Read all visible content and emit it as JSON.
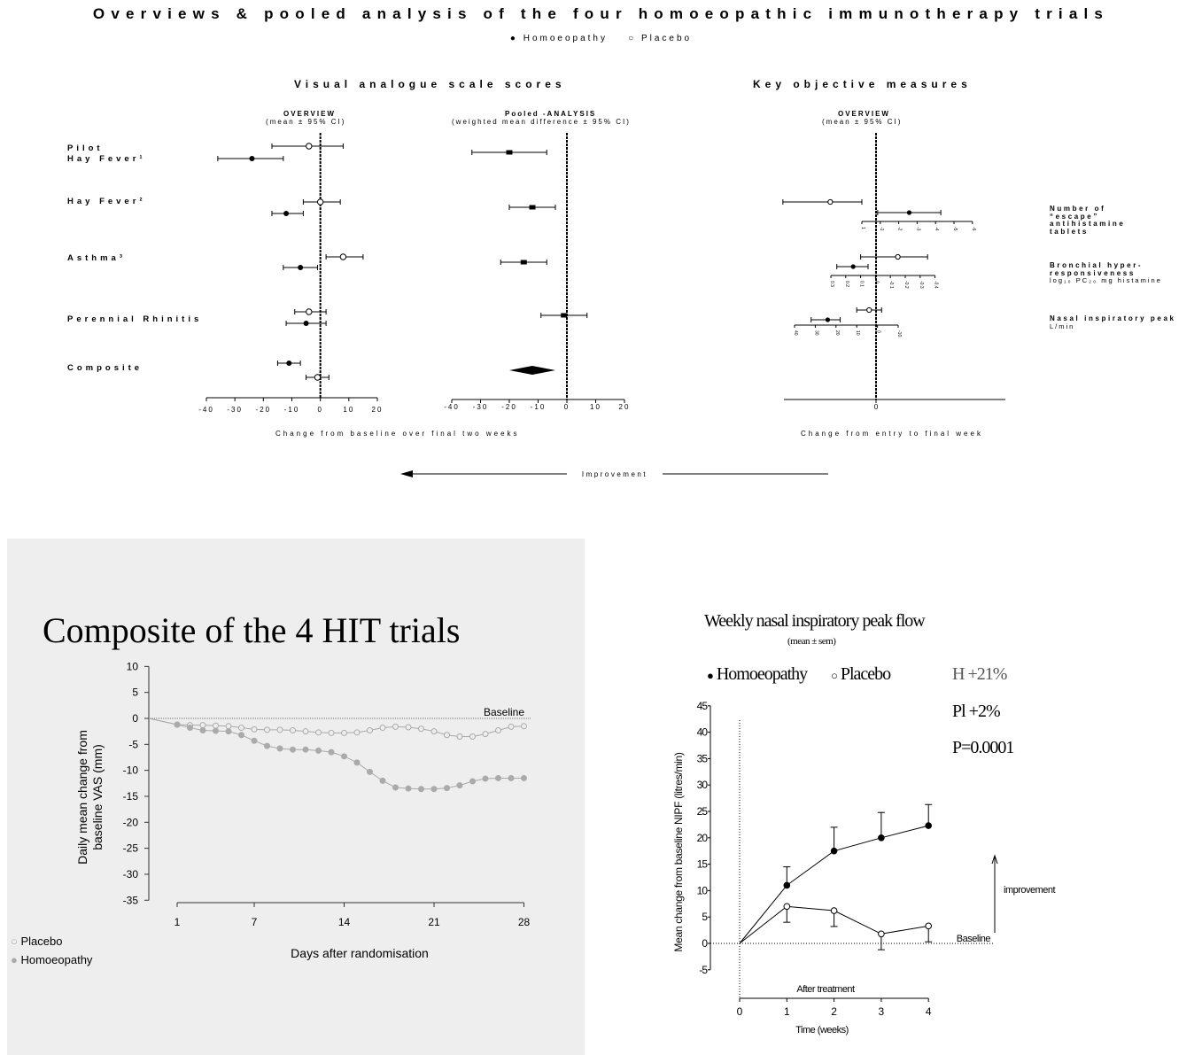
{
  "title": "Overviews & pooled analysis of the four homoeopathic immunotherapy trials",
  "legend": {
    "homoeopathy": "Homoeopathy",
    "placebo": "Placebo"
  },
  "sections": {
    "vas": "Visual analogue scale scores",
    "objective": "Key objective measures"
  },
  "panels": {
    "overview_title": "OVERVIEW",
    "overview_sub": "(mean ± 95% CI)",
    "pooled_title": "Pooled -ANALYSIS",
    "pooled_sub": "(weighted mean difference ± 95% CI)",
    "obj_overview_title": "OVERVIEW",
    "obj_overview_sub": "(mean ± 95% CI)"
  },
  "trials": {
    "pilot_1": "Pilot",
    "pilot_2": "Hay Fever¹",
    "hayfever": "Hay Fever²",
    "asthma": "Asthma³",
    "perennial": "Perennial Rhinitis",
    "composite": "Composite"
  },
  "objective_labels": {
    "escape_1": "Number of",
    "escape_2": "“escape”",
    "escape_3": "antihistamine",
    "escape_4": "tablets",
    "bronch_1": "Bronchial hyper-",
    "bronch_2": "responsiveness",
    "bronch_3": "log₁₀ PC₂₀ mg histamine",
    "nasal_1": "Nasal inspiratory peak",
    "nasal_2": "L/min"
  },
  "axis_labels": {
    "vas_x": "Change from baseline over final two weeks",
    "obj_x": "Change from entry to final week",
    "improvement": "Improvement"
  },
  "chart_data": [
    {
      "type": "scatter",
      "name": "VAS overview",
      "xlim": [
        -40,
        20
      ],
      "ticks": [
        -40,
        -30,
        -20,
        -10,
        0,
        10,
        20
      ],
      "rows": [
        {
          "trial": "Pilot Hay Fever1",
          "homoeopathy": {
            "mean": -24,
            "lo": -36,
            "hi": -13
          },
          "placebo": {
            "mean": -4,
            "lo": -17,
            "hi": 8
          }
        },
        {
          "trial": "Hay Fever2",
          "homoeopathy": {
            "mean": -12,
            "lo": -17,
            "hi": -6
          },
          "placebo": {
            "mean": 0,
            "lo": -6,
            "hi": 7
          }
        },
        {
          "trial": "Asthma3",
          "homoeopathy": {
            "mean": -7,
            "lo": -13,
            "hi": -1
          },
          "placebo": {
            "mean": 8,
            "lo": 2,
            "hi": 15
          }
        },
        {
          "trial": "Perennial Rhinitis",
          "homoeopathy": {
            "mean": -5,
            "lo": -12,
            "hi": 2
          },
          "placebo": {
            "mean": -4,
            "lo": -9,
            "hi": 2
          }
        },
        {
          "trial": "Composite",
          "homoeopathy": {
            "mean": -11,
            "lo": -15,
            "hi": -7
          },
          "placebo": {
            "mean": -1,
            "lo": -5,
            "hi": 3
          }
        }
      ]
    },
    {
      "type": "scatter",
      "name": "VAS pooled analysis",
      "xlim": [
        -40,
        20
      ],
      "ticks": [
        -40,
        -30,
        -20,
        -10,
        0,
        10,
        20
      ],
      "rows": [
        {
          "trial": "Pilot Hay Fever1",
          "wmd": -20,
          "lo": -33,
          "hi": -7
        },
        {
          "trial": "Hay Fever2",
          "wmd": -12,
          "lo": -20,
          "hi": -4
        },
        {
          "trial": "Asthma3",
          "wmd": -15,
          "lo": -23,
          "hi": -7
        },
        {
          "trial": "Perennial Rhinitis",
          "wmd": -1,
          "lo": -9,
          "hi": 7
        },
        {
          "trial": "Composite",
          "wmd": -12,
          "lo": -20,
          "hi": -4,
          "diamond": true
        }
      ]
    },
    {
      "type": "scatter",
      "name": "Objective measures overview",
      "baseline_tick": "0",
      "measures": [
        {
          "measure": "escape antihistamine tablets",
          "ticks": [
            "1",
            "-1",
            "-2",
            "-3",
            "-4",
            "-5",
            "-6"
          ],
          "homoeopathy": {
            "mean": -2,
            "lo": -4,
            "hi": 0
          },
          "placebo": {
            "mean": 3,
            "lo": 1,
            "hi": 6
          }
        },
        {
          "measure": "bronchial hyperresponsiveness",
          "ticks": [
            "0.3",
            "0.2",
            "0.1",
            "0",
            "-0.1",
            "-0.2",
            "-0.3",
            "-0.4"
          ],
          "homoeopathy": {
            "mean": 0.15,
            "lo": 0.05,
            "hi": 0.26
          },
          "placebo": {
            "mean": -0.15,
            "lo": -0.35,
            "hi": 0.1
          }
        },
        {
          "measure": "nasal inspiratory peak flow",
          "ticks": [
            "40",
            "30",
            "20",
            "10",
            "0",
            "-10"
          ],
          "homoeopathy": {
            "mean": 24,
            "lo": 18,
            "hi": 32
          },
          "placebo": {
            "mean": 4,
            "lo": -2,
            "hi": 10
          }
        }
      ]
    },
    {
      "type": "line",
      "title": "Composite of the 4 HIT trials",
      "xlabel": "Days after randomisation",
      "ylabel": "Daily mean change from baseline VAS (mm)",
      "ylim": [
        -35,
        10
      ],
      "yticks": [
        10,
        5,
        0,
        -5,
        -10,
        -15,
        -20,
        -25,
        -30,
        -35
      ],
      "xticks": [
        1,
        7,
        14,
        21,
        28
      ],
      "baseline_label": "Baseline",
      "x": [
        1,
        2,
        3,
        4,
        5,
        6,
        7,
        8,
        9,
        10,
        11,
        12,
        13,
        14,
        15,
        16,
        17,
        18,
        19,
        20,
        21,
        22,
        23,
        24,
        25,
        26,
        27,
        28
      ],
      "series": [
        {
          "name": "Placebo",
          "values": [
            -1.2,
            -1.3,
            -1.3,
            -1.4,
            -1.5,
            -1.8,
            -2.1,
            -2.2,
            -2.2,
            -2.3,
            -2.5,
            -2.7,
            -2.8,
            -2.8,
            -2.7,
            -2.3,
            -1.8,
            -1.6,
            -1.7,
            -2.0,
            -2.5,
            -3.2,
            -3.5,
            -3.5,
            -3.0,
            -2.3,
            -1.6,
            -1.5
          ]
        },
        {
          "name": "Homoeopathy",
          "values": [
            -1.2,
            -1.8,
            -2.3,
            -2.4,
            -2.5,
            -3.2,
            -4.3,
            -5.3,
            -5.8,
            -6.0,
            -6.0,
            -6.2,
            -6.5,
            -7.3,
            -8.5,
            -10.3,
            -12.0,
            -13.3,
            -13.5,
            -13.6,
            -13.6,
            -13.4,
            -12.9,
            -12.1,
            -11.6,
            -11.5,
            -11.5,
            -11.5
          ]
        }
      ]
    },
    {
      "type": "line",
      "title": "Weekly nasal inspiratory peak flow",
      "subtitle": "(mean ± sem)",
      "xlabel": "Time (weeks)",
      "ylabel": "Mean change from baseline NIPF (litres/min)",
      "ylim": [
        -5,
        45
      ],
      "yticks": [
        45,
        40,
        35,
        30,
        25,
        20,
        15,
        10,
        5,
        0,
        -5
      ],
      "xticks": [
        0,
        1,
        2,
        3,
        4
      ],
      "x": [
        0,
        1,
        2,
        3,
        4
      ],
      "series": [
        {
          "name": "Homoeopathy",
          "values": [
            0,
            11,
            17.5,
            20,
            22.3
          ],
          "sem": [
            0,
            3.5,
            4.5,
            4.8,
            4
          ]
        },
        {
          "name": "Placebo",
          "values": [
            0,
            7,
            6.2,
            1.8,
            3.3
          ],
          "sem": [
            0,
            3,
            3,
            3,
            3
          ]
        }
      ],
      "annotations": {
        "h": "H +21%",
        "pl": "Pl +2%",
        "p": "P=0.0001",
        "improvement": "improvement",
        "baseline": "Baseline",
        "after": "After treatment"
      }
    }
  ]
}
